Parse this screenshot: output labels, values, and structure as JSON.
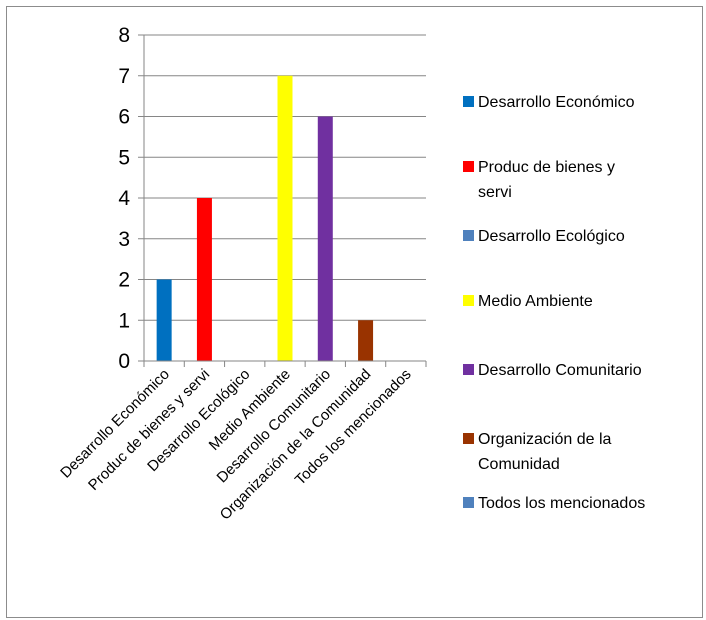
{
  "chart_data": {
    "type": "bar",
    "categories": [
      "Desarrollo Económico",
      "Produc de bienes y servi",
      "Desarrollo Ecológico",
      "Medio Ambiente",
      "Desarrollo Comunitario",
      "Organización de la Comunidad",
      "Todos los mencionados"
    ],
    "values": [
      2,
      4,
      0,
      7,
      6,
      1,
      0
    ],
    "colors": [
      "#0070c0",
      "#ff0000",
      "#4f81bd",
      "#ffff00",
      "#7030a0",
      "#993300",
      "#4f81bd"
    ],
    "ylim": [
      0,
      8
    ],
    "yticks": [
      "0",
      "1",
      "2",
      "3",
      "4",
      "5",
      "6",
      "7",
      "8"
    ],
    "grid": true,
    "legend_position": "right",
    "legend": [
      {
        "label": "Desarrollo Económico",
        "color": "#0070c0"
      },
      {
        "label": "Produc de bienes y servi",
        "lines": [
          "Produc de bienes y",
          "servi"
        ],
        "color": "#ff0000"
      },
      {
        "label": "Desarrollo Ecológico",
        "color": "#4f81bd"
      },
      {
        "label": "Medio Ambiente",
        "color": "#ffff00"
      },
      {
        "label": "Desarrollo Comunitario",
        "color": "#7030a0"
      },
      {
        "label": "Organización de la Comunidad",
        "lines": [
          "Organización de la",
          "Comunidad"
        ],
        "color": "#993300"
      },
      {
        "label": "Todos los mencionados",
        "color": "#4f81bd"
      }
    ],
    "title": "",
    "xlabel": "",
    "ylabel": ""
  }
}
